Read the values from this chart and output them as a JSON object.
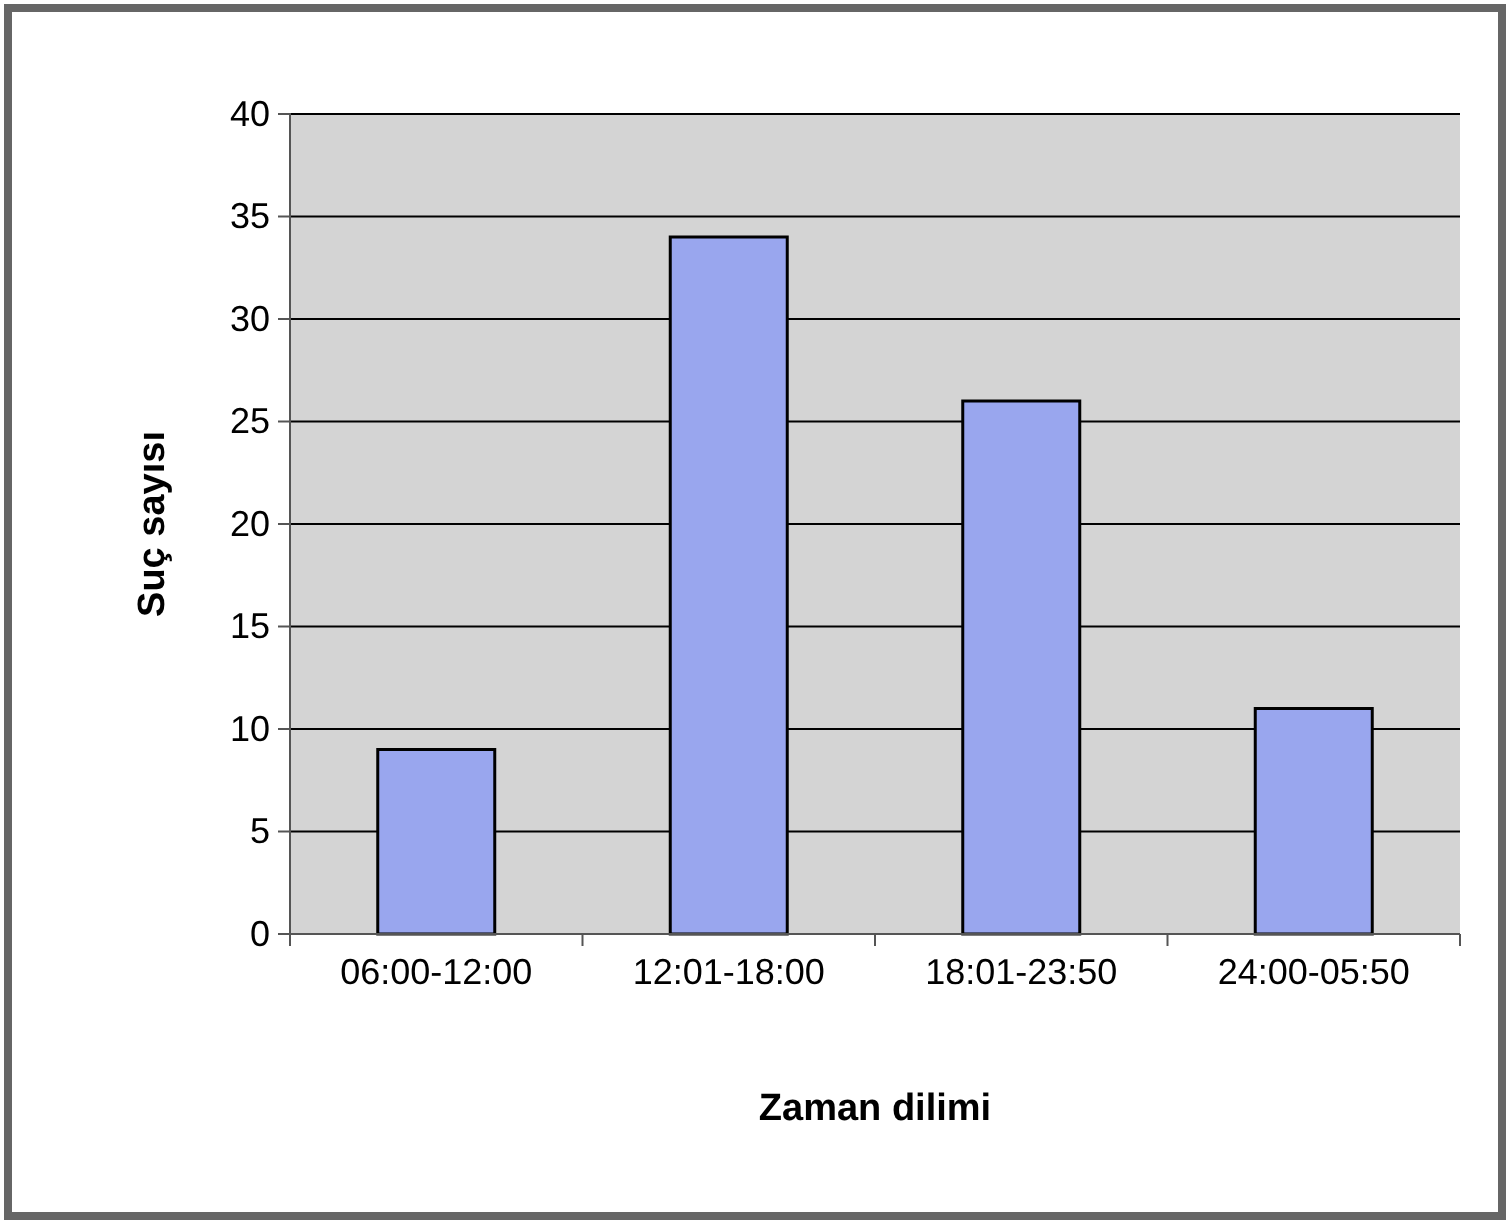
{
  "chart_data": {
    "type": "bar",
    "xlabel": "Zaman dilimi",
    "ylabel": "Suç sayısı",
    "categories": [
      "06:00-12:00",
      "12:01-18:00",
      "18:01-23:50",
      "24:00-05:50"
    ],
    "values": [
      9,
      34,
      26,
      11
    ],
    "color": "#99a6ee",
    "ylim": [
      0,
      40
    ],
    "yticks": [
      0,
      5,
      10,
      15,
      20,
      25,
      30,
      35,
      40
    ],
    "grid": "y"
  }
}
